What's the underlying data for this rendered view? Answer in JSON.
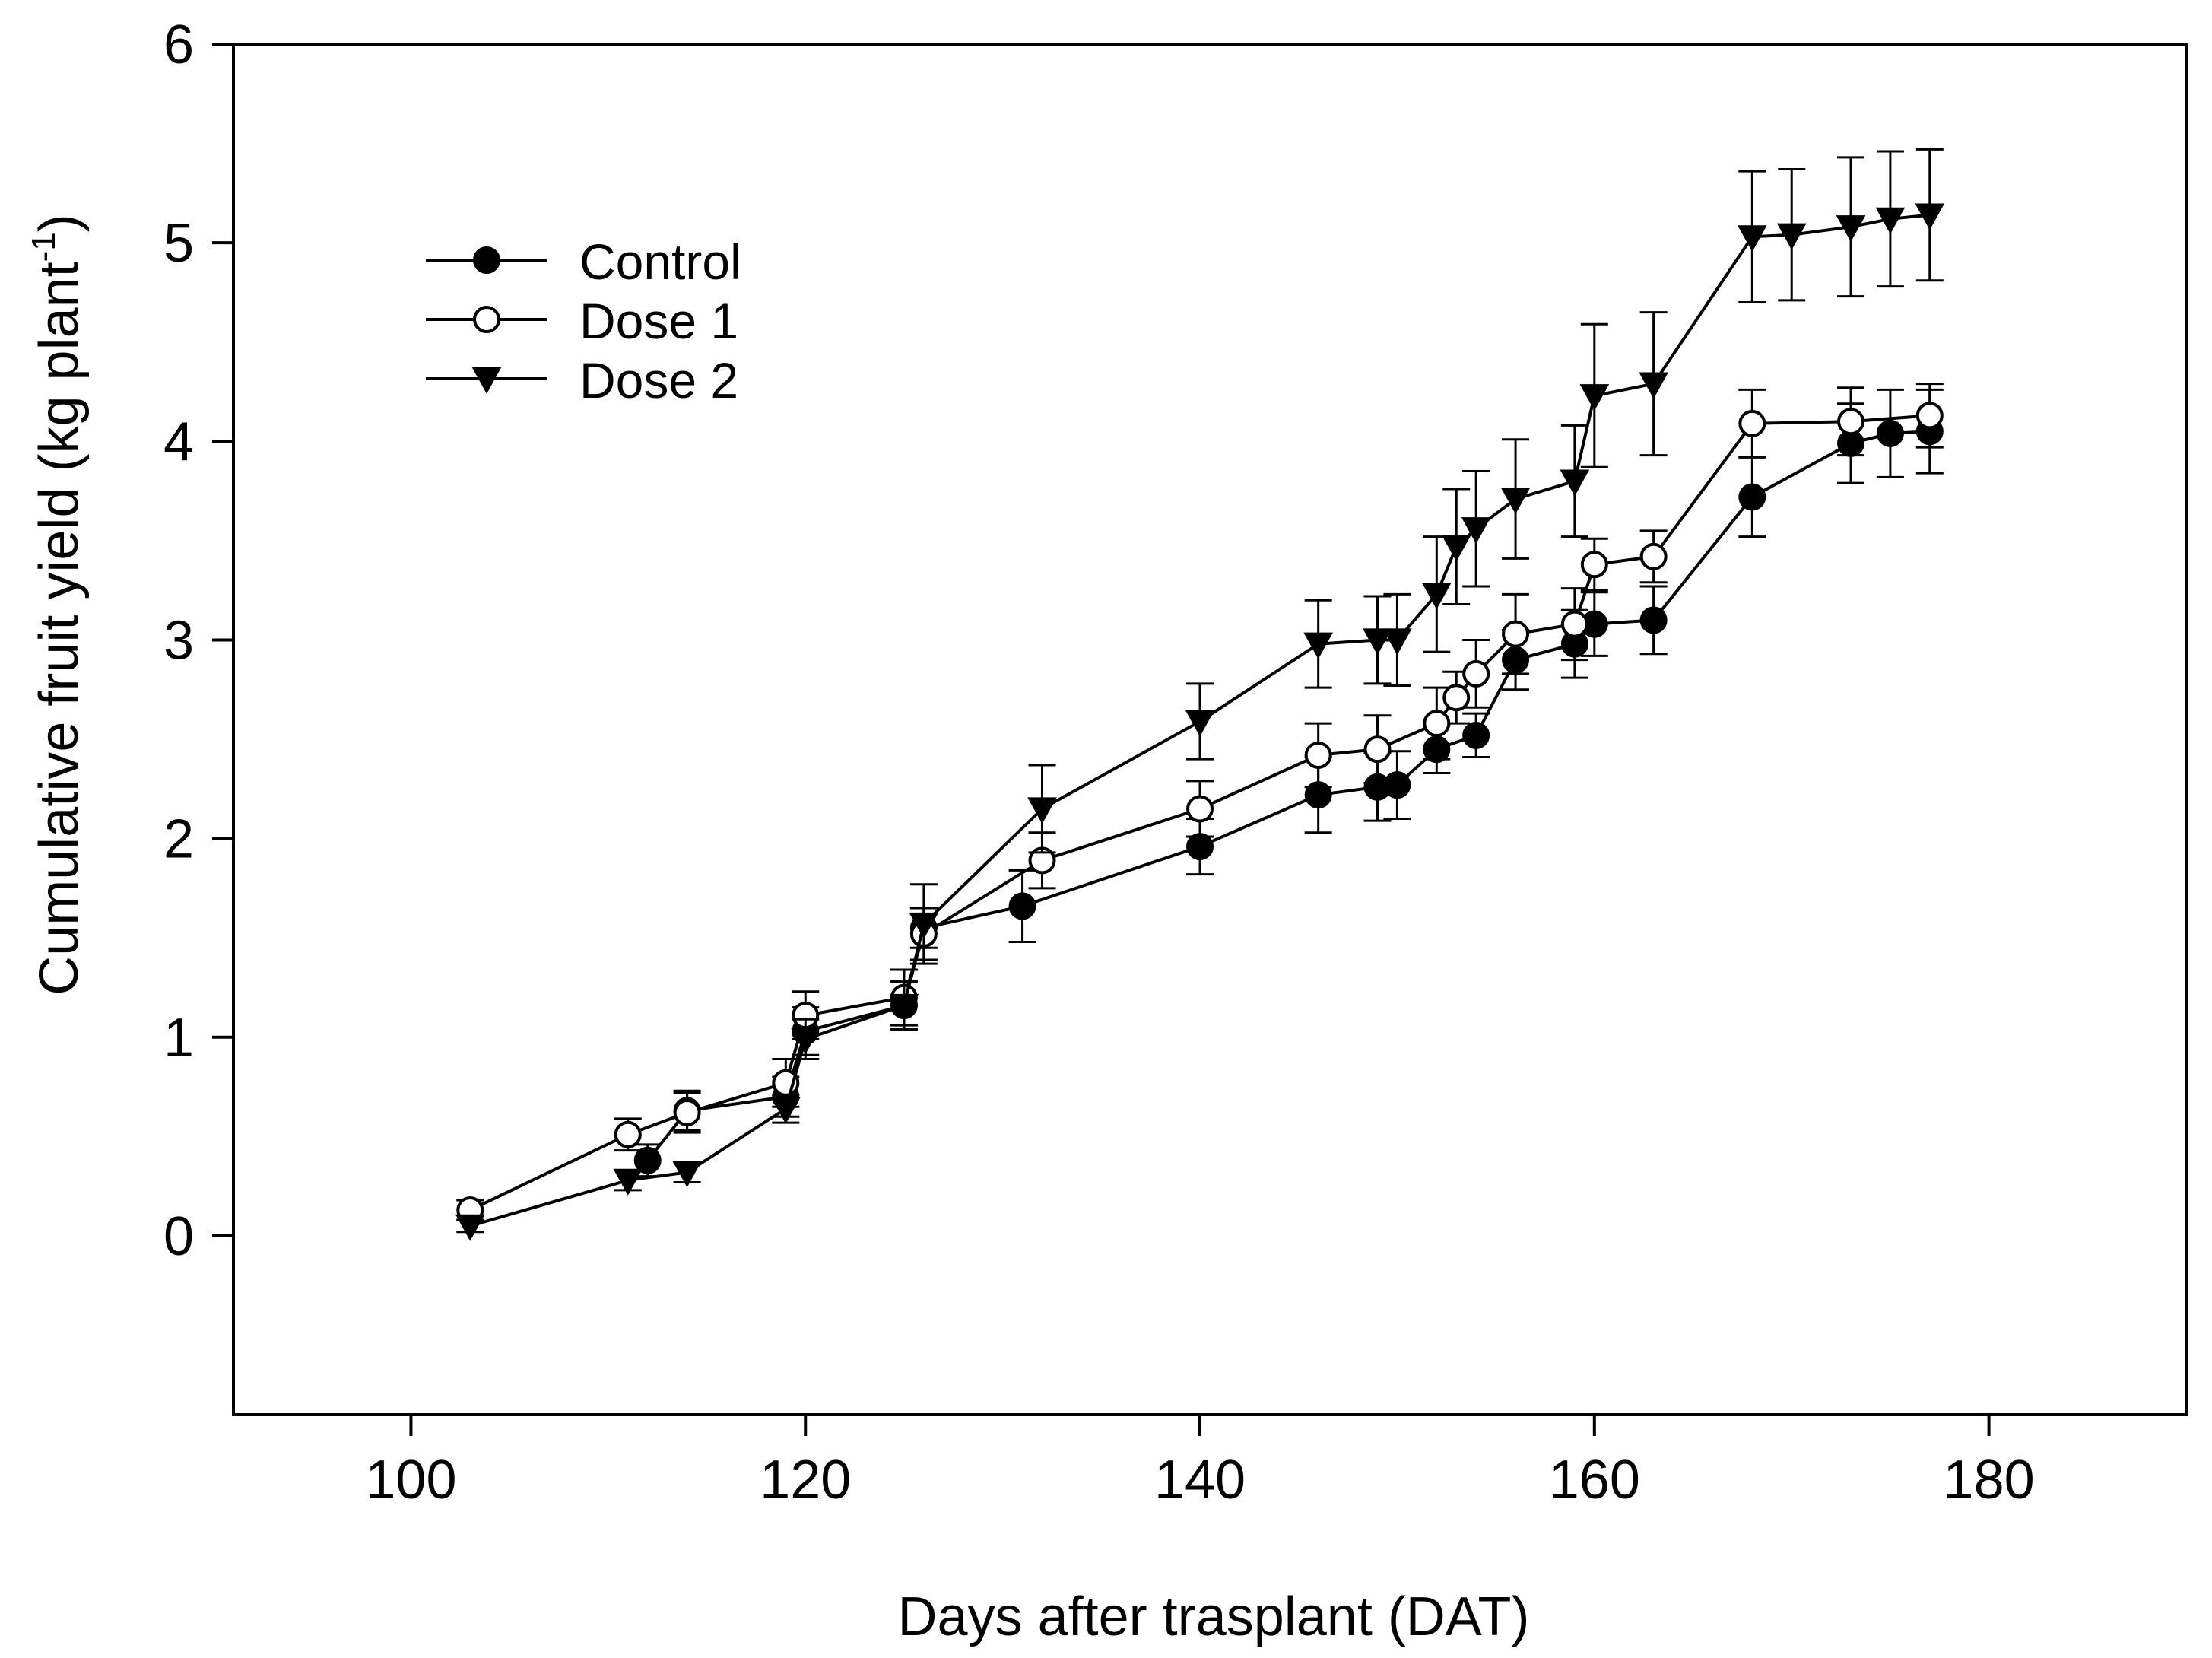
{
  "chart_data": {
    "type": "line",
    "title": "",
    "xlabel": "Days after trasplant (DAT)",
    "ylabel_main": "Cumulative fruit yield (kg plant",
    "ylabel_sup": "-1",
    "ylabel_close": ")",
    "xlim": [
      91,
      190
    ],
    "ylim": [
      -0.9,
      6
    ],
    "xticks": [
      100,
      120,
      140,
      160,
      180
    ],
    "yticks": [
      0,
      1,
      2,
      3,
      4,
      5,
      6
    ],
    "legend_position": "top-left",
    "series": [
      {
        "name": "Control",
        "marker": "circle-filled",
        "points": [
          {
            "x": 112,
            "y": 0.38,
            "err": 0.08
          },
          {
            "x": 114,
            "y": 0.63,
            "err": 0.1
          },
          {
            "x": 119,
            "y": 0.7,
            "err": 0.1
          },
          {
            "x": 120,
            "y": 1.03,
            "err": 0.12
          },
          {
            "x": 125,
            "y": 1.16,
            "err": 0.12
          },
          {
            "x": 126,
            "y": 1.55,
            "err": 0.1
          },
          {
            "x": 131,
            "y": 1.66,
            "err": 0.18
          },
          {
            "x": 140,
            "y": 1.96,
            "err": 0.14
          },
          {
            "x": 146,
            "y": 2.22,
            "err": 0.19
          },
          {
            "x": 149,
            "y": 2.26,
            "err": 0.17
          },
          {
            "x": 150,
            "y": 2.27,
            "err": 0.17
          },
          {
            "x": 152,
            "y": 2.45,
            "err": 0.12
          },
          {
            "x": 154,
            "y": 2.52,
            "err": 0.11
          },
          {
            "x": 156,
            "y": 2.9,
            "err": 0.15
          },
          {
            "x": 159,
            "y": 2.98,
            "err": 0.17
          },
          {
            "x": 160,
            "y": 3.08,
            "err": 0.16
          },
          {
            "x": 163,
            "y": 3.1,
            "err": 0.17
          },
          {
            "x": 168,
            "y": 3.72,
            "err": 0.2
          },
          {
            "x": 173,
            "y": 3.99,
            "err": 0.2
          },
          {
            "x": 175,
            "y": 4.04,
            "err": 0.22
          },
          {
            "x": 177,
            "y": 4.05,
            "err": 0.21
          }
        ]
      },
      {
        "name": "Dose 1",
        "marker": "circle-open",
        "points": [
          {
            "x": 103,
            "y": 0.13,
            "err": 0.05
          },
          {
            "x": 111,
            "y": 0.51,
            "err": 0.08
          },
          {
            "x": 114,
            "y": 0.62,
            "err": 0.1
          },
          {
            "x": 119,
            "y": 0.77,
            "err": 0.12
          },
          {
            "x": 120,
            "y": 1.11,
            "err": 0.12
          },
          {
            "x": 125,
            "y": 1.2,
            "err": 0.14
          },
          {
            "x": 126,
            "y": 1.52,
            "err": 0.13
          },
          {
            "x": 132,
            "y": 1.89,
            "err": 0.14
          },
          {
            "x": 140,
            "y": 2.15,
            "err": 0.14
          },
          {
            "x": 146,
            "y": 2.42,
            "err": 0.16
          },
          {
            "x": 149,
            "y": 2.45,
            "err": 0.17
          },
          {
            "x": 152,
            "y": 2.58,
            "err": 0.18
          },
          {
            "x": 153,
            "y": 2.71,
            "err": 0.13
          },
          {
            "x": 154,
            "y": 2.83,
            "err": 0.17
          },
          {
            "x": 156,
            "y": 3.03,
            "err": 0.2
          },
          {
            "x": 159,
            "y": 3.08,
            "err": 0.18
          },
          {
            "x": 160,
            "y": 3.38,
            "err": 0.13
          },
          {
            "x": 163,
            "y": 3.42,
            "err": 0.13
          },
          {
            "x": 168,
            "y": 4.09,
            "err": 0.17
          },
          {
            "x": 173,
            "y": 4.1,
            "err": 0.17
          },
          {
            "x": 177,
            "y": 4.13,
            "err": 0.16
          }
        ]
      },
      {
        "name": "Dose 2",
        "marker": "triangle-down-filled",
        "points": [
          {
            "x": 103,
            "y": 0.05,
            "err": 0.03
          },
          {
            "x": 111,
            "y": 0.28,
            "err": 0.05
          },
          {
            "x": 114,
            "y": 0.32,
            "err": 0.05
          },
          {
            "x": 119,
            "y": 0.64,
            "err": 0.07
          },
          {
            "x": 120,
            "y": 0.99,
            "err": 0.1
          },
          {
            "x": 125,
            "y": 1.16,
            "err": 0.12
          },
          {
            "x": 126,
            "y": 1.57,
            "err": 0.2
          },
          {
            "x": 132,
            "y": 2.15,
            "err": 0.22
          },
          {
            "x": 140,
            "y": 2.59,
            "err": 0.19
          },
          {
            "x": 146,
            "y": 2.98,
            "err": 0.22
          },
          {
            "x": 149,
            "y": 3.0,
            "err": 0.22
          },
          {
            "x": 150,
            "y": 3.0,
            "err": 0.23
          },
          {
            "x": 152,
            "y": 3.23,
            "err": 0.29
          },
          {
            "x": 153,
            "y": 3.47,
            "err": 0.29
          },
          {
            "x": 154,
            "y": 3.56,
            "err": 0.29
          },
          {
            "x": 156,
            "y": 3.71,
            "err": 0.3
          },
          {
            "x": 159,
            "y": 3.8,
            "err": 0.28
          },
          {
            "x": 160,
            "y": 4.23,
            "err": 0.36
          },
          {
            "x": 163,
            "y": 4.29,
            "err": 0.36
          },
          {
            "x": 168,
            "y": 5.03,
            "err": 0.33
          },
          {
            "x": 170,
            "y": 5.04,
            "err": 0.33
          },
          {
            "x": 173,
            "y": 5.08,
            "err": 0.35
          },
          {
            "x": 175,
            "y": 5.12,
            "err": 0.34
          },
          {
            "x": 177,
            "y": 5.14,
            "err": 0.33
          }
        ]
      }
    ]
  }
}
